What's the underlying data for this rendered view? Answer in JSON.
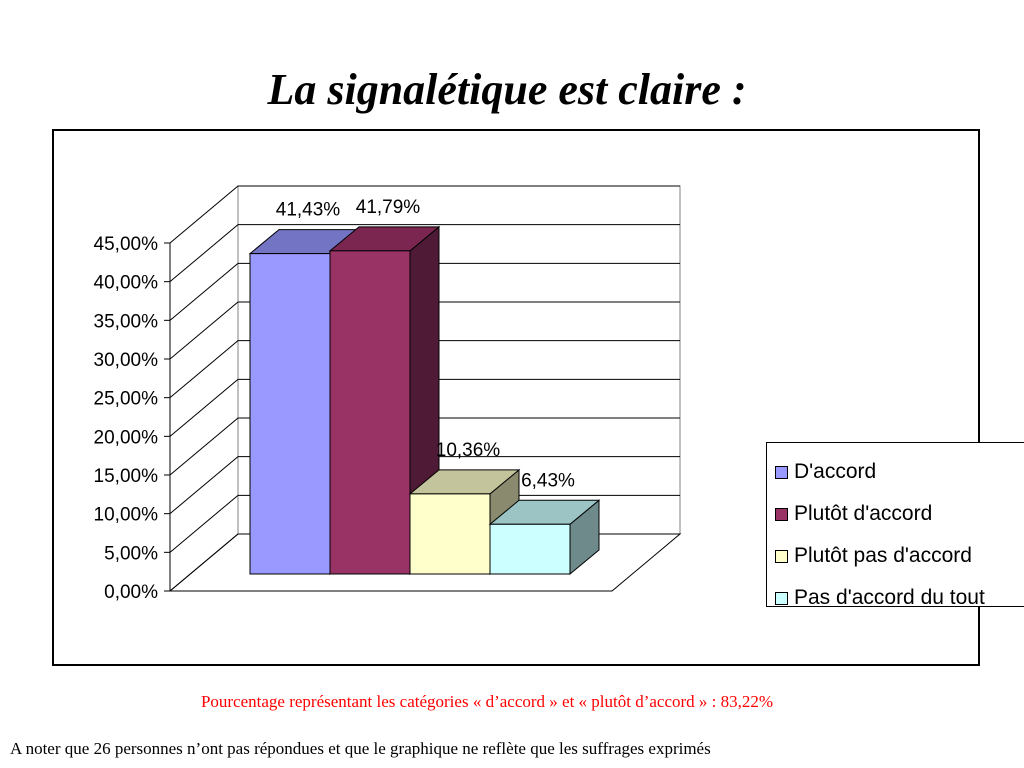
{
  "slide": {
    "title": "La signalétique est claire :",
    "note_red": "Pourcentage représentant les catégories « d’accord » et « plutôt d’accord » : 83,22%",
    "note_black": "A noter que 26 personnes n’ont pas répondues et que le graphique ne reflète que les suffrages exprimés"
  },
  "chart_data": {
    "type": "bar",
    "style": "3d",
    "title": "",
    "xlabel": "",
    "ylabel": "",
    "ylim": [
      0,
      45
    ],
    "y_ticks": [
      "0,00%",
      "5,00%",
      "10,00%",
      "15,00%",
      "20,00%",
      "25,00%",
      "30,00%",
      "35,00%",
      "40,00%",
      "45,00%"
    ],
    "grid": true,
    "legend_position": "right",
    "series": [
      {
        "name": "D'accord",
        "value": 41.43,
        "label": "41,43%",
        "color": "#9999ff",
        "top_color": "#7474c4",
        "side_color": "#52528a"
      },
      {
        "name": "Plutôt d'accord",
        "value": 41.79,
        "label": "41,79%",
        "color": "#993366",
        "top_color": "#7a2650",
        "side_color": "#4f1a35"
      },
      {
        "name": "Plutôt pas d'accord",
        "value": 10.36,
        "label": "10,36%",
        "color": "#ffffcc",
        "top_color": "#c4c49c",
        "side_color": "#8a8a6e"
      },
      {
        "name": "Pas d'accord du tout",
        "value": 6.43,
        "label": "6,43%",
        "color": "#ccffff",
        "top_color": "#9cc4c4",
        "side_color": "#6e8a8a"
      }
    ]
  }
}
